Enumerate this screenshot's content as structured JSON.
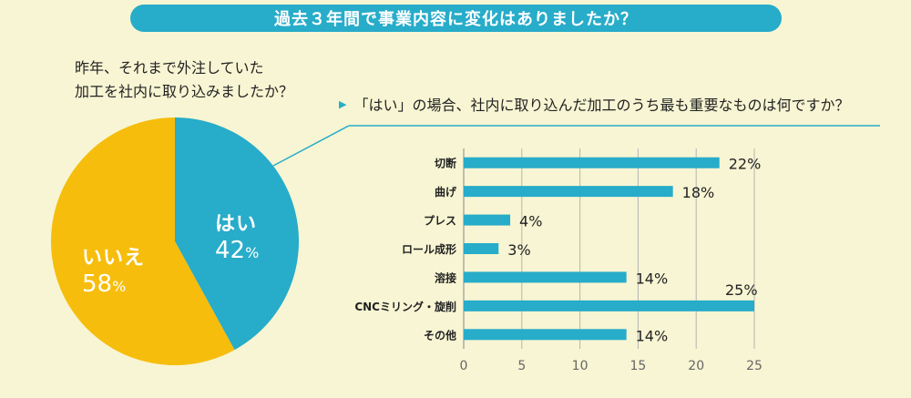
{
  "header": {
    "title": "過去３年間で事業内容に変化はありましたか？"
  },
  "colors": {
    "accent": "#27acc9",
    "yes": "#27acc9",
    "no": "#f6bd0c",
    "background": "#f7f5d3"
  },
  "chart_data": [
    {
      "type": "pie",
      "title_lines": [
        "昨年、それまで外注していた",
        "加工を社内に取り込みましたか？"
      ],
      "slices": [
        {
          "label": "はい",
          "value": 42,
          "pct": "42",
          "unit": "%",
          "color": "#27acc9"
        },
        {
          "label": "いいえ",
          "value": 58,
          "pct": "58",
          "unit": "%",
          "color": "#f6bd0c"
        }
      ]
    },
    {
      "type": "bar",
      "orientation": "horizontal",
      "title": "「はい」の場合、社内に取り込んだ加工のうち最も重要なものは何ですか？",
      "categories": [
        "切断",
        "曲げ",
        "プレス",
        "ロール成形",
        "溶接",
        "CNCミリング・旋削",
        "その他"
      ],
      "values": [
        22,
        18,
        4,
        3,
        14,
        25,
        14
      ],
      "value_labels": [
        "22%",
        "18%",
        "4%",
        "3%",
        "14%",
        "25%",
        "14%"
      ],
      "xlim": [
        0,
        25
      ],
      "xticks": [
        "0",
        "5",
        "10",
        "15",
        "20",
        "25"
      ],
      "grid": "vertical",
      "color": "#27acc9"
    }
  ]
}
